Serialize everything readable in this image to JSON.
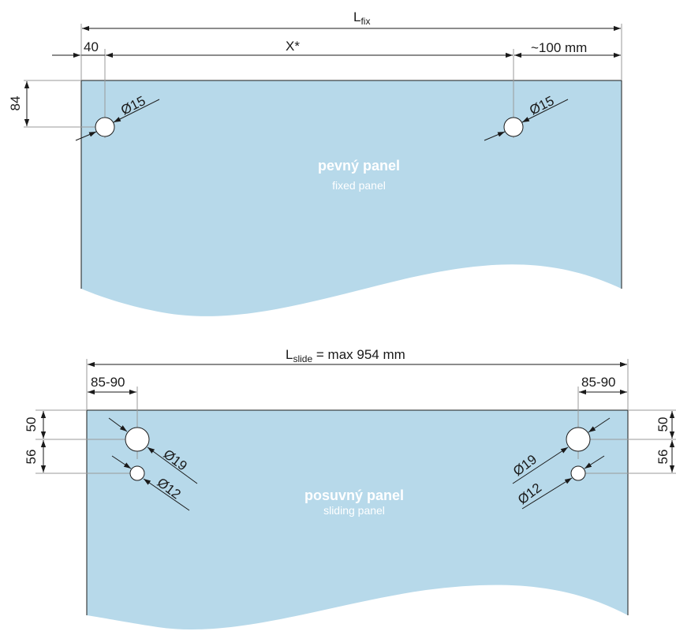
{
  "colors": {
    "panel_fill": "#b7d9ea",
    "line": "#1a1a1a",
    "extension": "#9a9a9a"
  },
  "fixed_panel": {
    "title": "pevný panel",
    "subtitle": "fixed panel",
    "total_width_label_main": "L",
    "total_width_label_sub": "fix",
    "left_offset": "40",
    "between_holes": "X*",
    "right_offset": "~100 mm",
    "hole_height": "84",
    "hole_left_diameter": "Ø15",
    "hole_right_diameter": "Ø15"
  },
  "sliding_panel": {
    "title": "posuvný panel",
    "subtitle": "sliding panel",
    "total_width_label_main": "L",
    "total_width_label_sub": "slide",
    "total_width_value": " = max 954 mm",
    "left_offset": "85-90",
    "right_offset": "85-90",
    "left_top": "50",
    "left_spacing": "56",
    "right_top": "50",
    "right_spacing": "56",
    "large_hole_left": "Ø19",
    "small_hole_left": "Ø12",
    "large_hole_right": "Ø19",
    "small_hole_right": "Ø12"
  }
}
